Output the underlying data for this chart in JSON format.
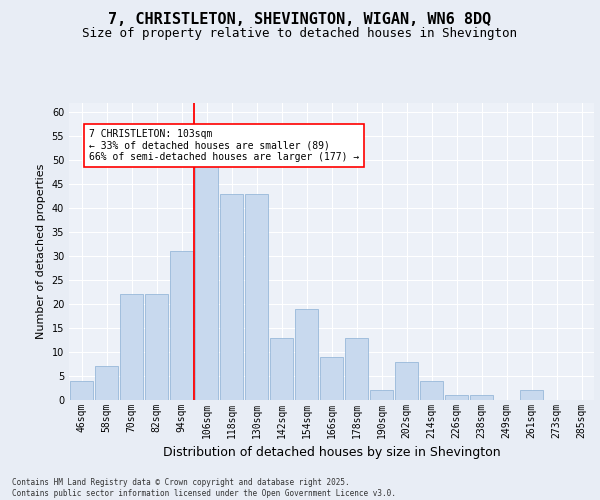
{
  "title": "7, CHRISTLETON, SHEVINGTON, WIGAN, WN6 8DQ",
  "subtitle": "Size of property relative to detached houses in Shevington",
  "xlabel": "Distribution of detached houses by size in Shevington",
  "ylabel": "Number of detached properties",
  "categories": [
    "46sqm",
    "58sqm",
    "70sqm",
    "82sqm",
    "94sqm",
    "106sqm",
    "118sqm",
    "130sqm",
    "142sqm",
    "154sqm",
    "166sqm",
    "178sqm",
    "190sqm",
    "202sqm",
    "214sqm",
    "226sqm",
    "238sqm",
    "249sqm",
    "261sqm",
    "273sqm",
    "285sqm"
  ],
  "values": [
    4,
    7,
    22,
    22,
    31,
    50,
    43,
    43,
    13,
    19,
    9,
    13,
    2,
    8,
    4,
    1,
    1,
    0,
    2,
    0,
    0
  ],
  "bar_color": "#c8d9ee",
  "bar_edge_color": "#8aafd4",
  "annotation_text": "7 CHRISTLETON: 103sqm\n← 33% of detached houses are smaller (89)\n66% of semi-detached houses are larger (177) →",
  "ylim": [
    0,
    62
  ],
  "yticks": [
    0,
    5,
    10,
    15,
    20,
    25,
    30,
    35,
    40,
    45,
    50,
    55,
    60
  ],
  "background_color": "#e8edf5",
  "plot_background": "#edf1f8",
  "grid_color": "#ffffff",
  "title_fontsize": 11,
  "subtitle_fontsize": 9,
  "axis_fontsize": 8,
  "tick_fontsize": 7,
  "footer_text": "Contains HM Land Registry data © Crown copyright and database right 2025.\nContains public sector information licensed under the Open Government Licence v3.0."
}
